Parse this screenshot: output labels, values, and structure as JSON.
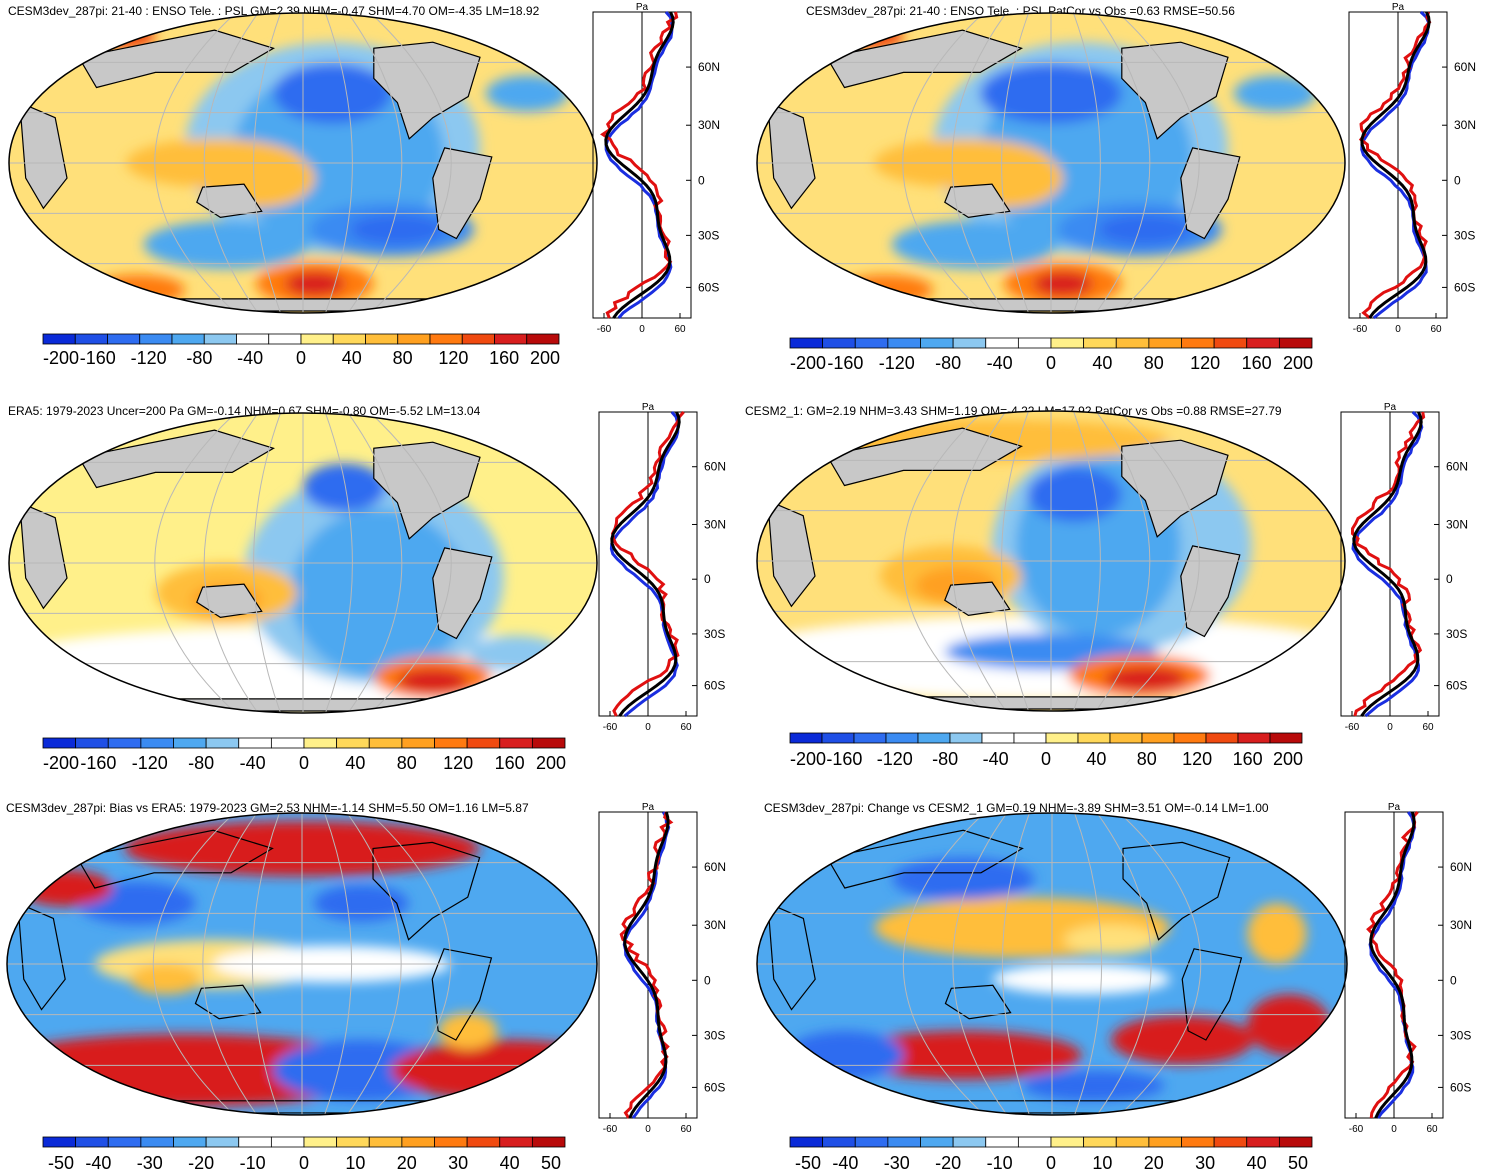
{
  "chart_data": [
    {
      "id": "p1",
      "type": "contour-map",
      "title": "CESM3dev_287pi: 21-40 : ENSO Tele. : PSL GM=2.39 NHM=-0.47 SHM=4.70 OM=-4.35 LM=18.92",
      "colorbar_ticks": [
        "-200",
        "-160",
        "-120",
        "-80",
        "-40",
        "0",
        "40",
        "80",
        "120",
        "160",
        "200"
      ],
      "zonal_profile": {
        "unit": "Pa",
        "x_ticks": [
          "-60",
          "0",
          "60"
        ],
        "lat_ticks": [
          "60N",
          "30N",
          "0",
          "30S",
          "60S"
        ]
      }
    },
    {
      "id": "p2",
      "type": "contour-map",
      "title": "CESM3dev_287pi: 21-40 : ENSO Tele. : PSL PatCor vs Obs =0.63 RMSE=50.56",
      "colorbar_ticks": [
        "-200",
        "-160",
        "-120",
        "-80",
        "-40",
        "0",
        "40",
        "80",
        "120",
        "160",
        "200"
      ],
      "zonal_profile": {
        "unit": "Pa",
        "x_ticks": [
          "-60",
          "0",
          "60"
        ],
        "lat_ticks": [
          "60N",
          "30N",
          "0",
          "30S",
          "60S"
        ]
      }
    },
    {
      "id": "p3",
      "type": "contour-map",
      "title": "ERA5: 1979-2023 Uncer=200 Pa GM=-0.14 NHM=0.67 SHM=-0.80 OM=-5.52 LM=13.04",
      "colorbar_ticks": [
        "-200",
        "-160",
        "-120",
        "-80",
        "-40",
        "0",
        "40",
        "80",
        "120",
        "160",
        "200"
      ],
      "zonal_profile": {
        "unit": "Pa",
        "x_ticks": [
          "-60",
          "0",
          "60"
        ],
        "lat_ticks": [
          "60N",
          "30N",
          "0",
          "30S",
          "60S"
        ]
      }
    },
    {
      "id": "p4",
      "type": "contour-map",
      "title": "CESM2_1: GM=2.19 NHM=3.43 SHM=1.19 OM=-4.22 LM=17.92 PatCor vs Obs =0.88 RMSE=27.79",
      "colorbar_ticks": [
        "-200",
        "-160",
        "-120",
        "-80",
        "-40",
        "0",
        "40",
        "80",
        "120",
        "160",
        "200"
      ],
      "zonal_profile": {
        "unit": "Pa",
        "x_ticks": [
          "-60",
          "0",
          "60"
        ],
        "lat_ticks": [
          "60N",
          "30N",
          "0",
          "30S",
          "60S"
        ]
      }
    },
    {
      "id": "p5",
      "type": "contour-map",
      "title": "CESM3dev_287pi: Bias vs ERA5: 1979-2023 GM=2.53 NHM=-1.14 SHM=5.50 OM=1.16 LM=5.87",
      "colorbar_ticks": [
        "-50",
        "-40",
        "-30",
        "-20",
        "-10",
        "0",
        "10",
        "20",
        "30",
        "40",
        "50"
      ],
      "zonal_profile": {
        "unit": "Pa",
        "x_ticks": [
          "-60",
          "0",
          "60"
        ],
        "lat_ticks": [
          "60N",
          "30N",
          "0",
          "30S",
          "60S"
        ]
      }
    },
    {
      "id": "p6",
      "type": "contour-map",
      "title": "CESM3dev_287pi: Change vs CESM2_1 GM=0.19 NHM=-3.89 SHM=3.51 OM=-0.14 LM=1.00",
      "colorbar_ticks": [
        "-50",
        "-40",
        "-30",
        "-20",
        "-10",
        "0",
        "10",
        "20",
        "30",
        "40",
        "50"
      ],
      "zonal_profile": {
        "unit": "Pa",
        "x_ticks": [
          "-60",
          "0",
          "60"
        ],
        "lat_ticks": [
          "60N",
          "30N",
          "0",
          "30S",
          "60S"
        ]
      }
    }
  ],
  "colors": {
    "palette": [
      "#0a2ad8",
      "#1f4fe6",
      "#2e6cf0",
      "#3b8bf2",
      "#4ea8f0",
      "#8cc8f0",
      "#ffffff",
      "#ffffff",
      "#fff08a",
      "#ffd85a",
      "#ffbe3a",
      "#ffa020",
      "#ff7a10",
      "#f04a10",
      "#d81e1e",
      "#b80a0a"
    ],
    "land": "#c8c8c8",
    "line_model": "#e01010",
    "line_obs": "#1a2ee0",
    "line_ref": "#000000"
  }
}
